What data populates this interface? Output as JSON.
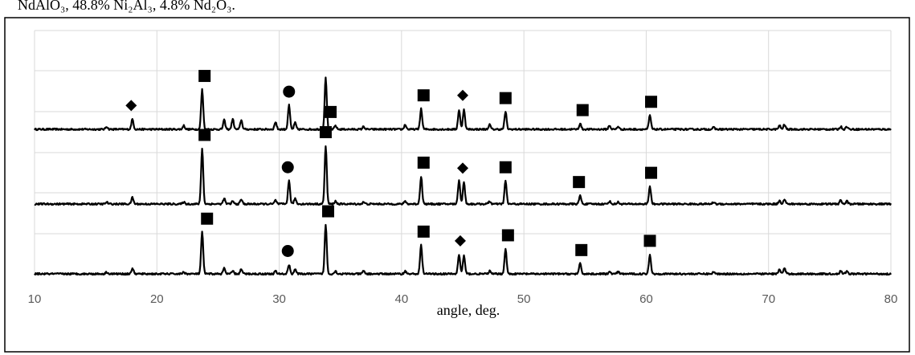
{
  "caption": "NdAlO₃, 48.8% Ni₂Al₃, 4.8% Nd₂O₃.",
  "chart_data": {
    "type": "line",
    "title": "",
    "xlabel": "angle, deg.",
    "ylabel": "",
    "xlim": [
      10,
      80
    ],
    "x_ticks": [
      10,
      20,
      30,
      40,
      50,
      60,
      70,
      80
    ],
    "grid": true,
    "legend": "none",
    "line_color": "#000000",
    "peaks_x": [
      15.9,
      18.0,
      22.2,
      23.7,
      25.5,
      26.2,
      26.9,
      29.7,
      30.8,
      31.3,
      33.8,
      34.6,
      36.9,
      40.3,
      41.6,
      44.7,
      45.1,
      47.2,
      48.5,
      54.6,
      57.0,
      57.7,
      60.3,
      65.5,
      70.9,
      71.3,
      75.9,
      76.4
    ],
    "series": [
      {
        "values": [
          0.3,
          1.1,
          0.4,
          4.3,
          1.0,
          1.1,
          1.0,
          0.8,
          2.6,
          0.7,
          5.6,
          0.4,
          0.3,
          0.5,
          2.2,
          2.1,
          2.2,
          0.5,
          1.9,
          0.6,
          0.4,
          0.3,
          1.5,
          0.2,
          0.4,
          0.5,
          0.3,
          0.3
        ],
        "markers": [
          {
            "x": 17.9,
            "symbol": "diamond"
          },
          {
            "x": 23.9,
            "symbol": "square"
          },
          {
            "x": 30.8,
            "symbol": "circle"
          },
          {
            "x": 34.2,
            "symbol": "square"
          },
          {
            "x": 41.8,
            "symbol": "square"
          },
          {
            "x": 45.0,
            "symbol": "diamond"
          },
          {
            "x": 48.5,
            "symbol": "square"
          },
          {
            "x": 54.8,
            "symbol": "square"
          },
          {
            "x": 60.4,
            "symbol": "square"
          }
        ]
      },
      {
        "values": [
          0.2,
          0.7,
          0.2,
          6.0,
          0.6,
          0.3,
          0.5,
          0.4,
          2.5,
          0.6,
          6.3,
          0.3,
          0.2,
          0.3,
          3.0,
          2.6,
          2.4,
          0.3,
          2.5,
          0.9,
          0.3,
          0.2,
          1.9,
          0.2,
          0.4,
          0.5,
          0.4,
          0.3
        ],
        "markers": [
          {
            "x": 23.9,
            "symbol": "square"
          },
          {
            "x": 30.7,
            "symbol": "circle"
          },
          {
            "x": 33.8,
            "symbol": "square"
          },
          {
            "x": 41.8,
            "symbol": "square"
          },
          {
            "x": 45.0,
            "symbol": "diamond"
          },
          {
            "x": 48.5,
            "symbol": "square"
          },
          {
            "x": 54.5,
            "symbol": "square"
          },
          {
            "x": 60.4,
            "symbol": "square"
          }
        ]
      },
      {
        "values": [
          0.2,
          0.6,
          0.2,
          4.5,
          0.6,
          0.3,
          0.5,
          0.3,
          1.0,
          0.5,
          5.3,
          0.3,
          0.3,
          0.3,
          3.1,
          2.1,
          2.0,
          0.3,
          2.7,
          1.1,
          0.2,
          0.2,
          2.1,
          0.2,
          0.5,
          0.6,
          0.3,
          0.3
        ],
        "markers": [
          {
            "x": 24.1,
            "symbol": "square"
          },
          {
            "x": 30.7,
            "symbol": "circle"
          },
          {
            "x": 34.0,
            "symbol": "square"
          },
          {
            "x": 41.8,
            "symbol": "square"
          },
          {
            "x": 44.8,
            "symbol": "diamond"
          },
          {
            "x": 48.7,
            "symbol": "square"
          },
          {
            "x": 54.7,
            "symbol": "square"
          },
          {
            "x": 60.3,
            "symbol": "square"
          }
        ]
      }
    ]
  }
}
